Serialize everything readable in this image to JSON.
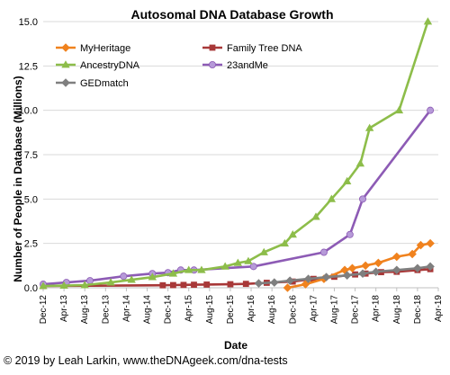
{
  "chart_data": {
    "type": "line",
    "title": "Autosomal DNA Database Growth",
    "xlabel": "Date",
    "ylabel": "Number of People in Database (Millions)",
    "ylim": [
      0,
      15
    ],
    "yticks": [
      "0.0",
      "2.5",
      "5.0",
      "7.5",
      "10.0",
      "12.5",
      "15.0"
    ],
    "xticks": [
      "Dec-12",
      "Apr-13",
      "Aug-13",
      "Dec-13",
      "Apr-14",
      "Aug-14",
      "Dec-14",
      "Apr-15",
      "Aug-15",
      "Dec-15",
      "Apr-16",
      "Aug-16",
      "Dec-16",
      "Apr-17",
      "Aug-17",
      "Dec-17",
      "Apr-18",
      "Aug-18",
      "Dec-18",
      "Apr-19"
    ],
    "grid": "horizontal",
    "legend_position": "top-left",
    "series": [
      {
        "name": "MyHeritage",
        "color": "#f0821e",
        "marker": "diamond",
        "points": [
          [
            "2016-11-01",
            0.0
          ],
          [
            "2017-02-15",
            0.2
          ],
          [
            "2017-06-01",
            0.5
          ],
          [
            "2017-10-01",
            1.0
          ],
          [
            "2017-11-15",
            1.1
          ],
          [
            "2018-02-01",
            1.25
          ],
          [
            "2018-04-15",
            1.4
          ],
          [
            "2018-08-01",
            1.75
          ],
          [
            "2018-11-01",
            1.9
          ],
          [
            "2018-12-20",
            2.4
          ],
          [
            "2019-02-15",
            2.5
          ]
        ]
      },
      {
        "name": "Family Tree DNA",
        "color": "#a83838",
        "marker": "square",
        "points": [
          [
            "2012-12-01",
            0.1
          ],
          [
            "2014-11-01",
            0.14
          ],
          [
            "2015-01-01",
            0.15
          ],
          [
            "2015-03-01",
            0.16
          ],
          [
            "2015-05-01",
            0.17
          ],
          [
            "2015-07-15",
            0.18
          ],
          [
            "2015-12-01",
            0.2
          ],
          [
            "2016-03-01",
            0.22
          ],
          [
            "2016-07-01",
            0.28
          ],
          [
            "2016-12-01",
            0.35
          ],
          [
            "2017-04-01",
            0.5
          ],
          [
            "2017-08-01",
            0.62
          ],
          [
            "2017-12-01",
            0.75
          ],
          [
            "2018-02-01",
            0.8
          ],
          [
            "2018-05-01",
            0.88
          ],
          [
            "2018-08-01",
            0.9
          ],
          [
            "2018-12-01",
            1.0
          ],
          [
            "2019-02-15",
            1.05
          ]
        ]
      },
      {
        "name": "AncestryDNA",
        "color": "#8dbd4a",
        "marker": "triangle",
        "points": [
          [
            "2012-12-01",
            0.1
          ],
          [
            "2013-04-01",
            0.12
          ],
          [
            "2013-08-01",
            0.15
          ],
          [
            "2014-01-01",
            0.3
          ],
          [
            "2014-05-01",
            0.45
          ],
          [
            "2014-09-01",
            0.6
          ],
          [
            "2015-01-01",
            0.8
          ],
          [
            "2015-04-01",
            1.0
          ],
          [
            "2015-06-15",
            1.0
          ],
          [
            "2015-11-01",
            1.2
          ],
          [
            "2016-01-15",
            1.4
          ],
          [
            "2016-03-15",
            1.5
          ],
          [
            "2016-06-15",
            2.0
          ],
          [
            "2016-10-15",
            2.5
          ],
          [
            "2016-12-01",
            3.0
          ],
          [
            "2017-04-15",
            4.0
          ],
          [
            "2017-07-15",
            5.0
          ],
          [
            "2017-10-15",
            6.0
          ],
          [
            "2018-01-01",
            7.0
          ],
          [
            "2018-02-25",
            9.0
          ],
          [
            "2018-08-15",
            10.0
          ],
          [
            "2019-02-01",
            15.0
          ]
        ]
      },
      {
        "name": "23andMe",
        "color": "#8d5bb5",
        "marker": "circle",
        "points": [
          [
            "2012-12-01",
            0.2
          ],
          [
            "2013-04-15",
            0.3
          ],
          [
            "2013-09-01",
            0.4
          ],
          [
            "2014-03-15",
            0.65
          ],
          [
            "2014-09-01",
            0.8
          ],
          [
            "2014-12-01",
            0.85
          ],
          [
            "2015-02-15",
            1.0
          ],
          [
            "2015-05-01",
            1.0
          ],
          [
            "2016-04-15",
            1.2
          ],
          [
            "2017-06-01",
            2.0
          ],
          [
            "2017-11-01",
            3.0
          ],
          [
            "2018-01-15",
            5.0
          ],
          [
            "2019-02-15",
            10.0
          ]
        ]
      },
      {
        "name": "GEDmatch",
        "color": "#7f7f7f",
        "marker": "diamond",
        "points": [
          [
            "2016-05-15",
            0.25
          ],
          [
            "2016-08-15",
            0.3
          ],
          [
            "2016-11-15",
            0.4
          ],
          [
            "2017-03-01",
            0.5
          ],
          [
            "2017-06-15",
            0.6
          ],
          [
            "2017-10-15",
            0.7
          ],
          [
            "2018-01-15",
            0.8
          ],
          [
            "2018-04-01",
            0.9
          ],
          [
            "2018-08-01",
            1.0
          ],
          [
            "2018-12-01",
            1.1
          ],
          [
            "2019-02-15",
            1.2
          ]
        ]
      }
    ]
  },
  "credit": "© 2019 by Leah Larkin, www.theDNAgeek.com/dna-tests"
}
